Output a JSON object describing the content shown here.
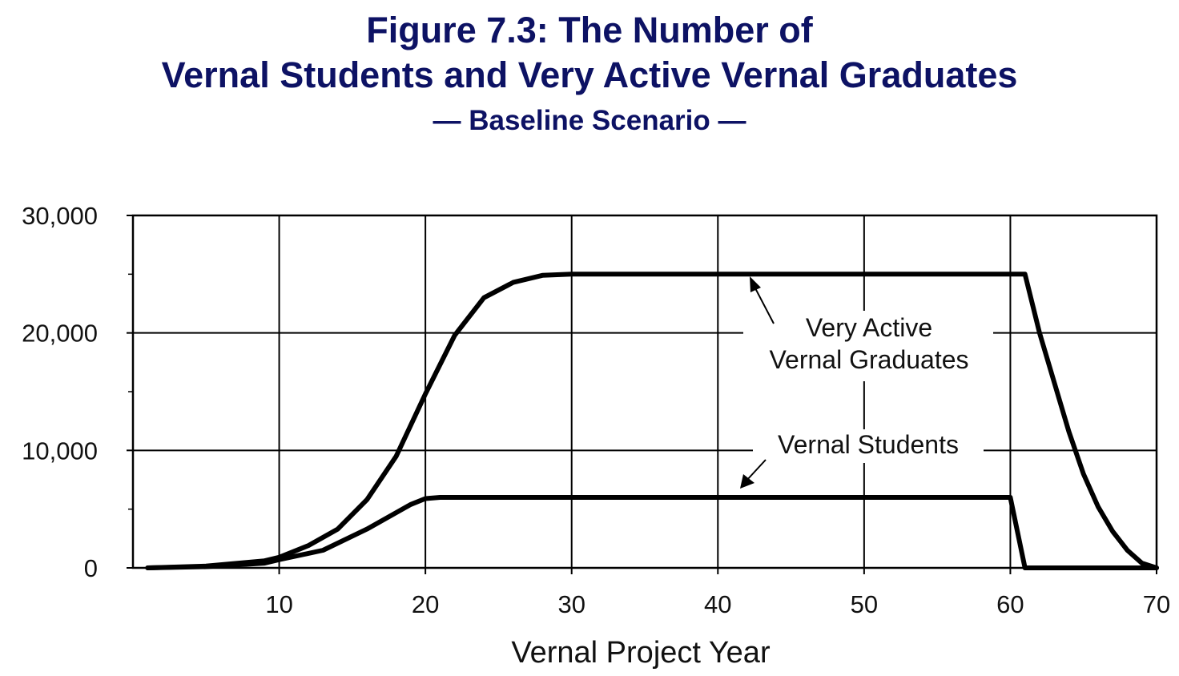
{
  "title": {
    "line1": "Figure 7.3: The Number of",
    "line2": "Vernal Students and Very Active Vernal Graduates",
    "subtitle": "— Baseline Scenario —"
  },
  "chart_data": {
    "type": "line",
    "xlabel": "Vernal Project Year",
    "ylabel": "",
    "xlim": [
      0,
      70
    ],
    "ylim": [
      0,
      30000
    ],
    "xticks": [
      10,
      20,
      30,
      40,
      50,
      60,
      70
    ],
    "yticks": [
      0,
      10000,
      20000,
      30000
    ],
    "ytick_labels": [
      "0",
      "10,000",
      "20,000",
      "30,000"
    ],
    "grid": true,
    "series": [
      {
        "name": "Very Active Vernal Graduates",
        "points": [
          [
            1,
            0
          ],
          [
            5,
            150
          ],
          [
            9,
            600
          ],
          [
            10,
            900
          ],
          [
            12,
            1900
          ],
          [
            14,
            3300
          ],
          [
            16,
            5800
          ],
          [
            18,
            9500
          ],
          [
            20,
            14800
          ],
          [
            22,
            19800
          ],
          [
            24,
            23000
          ],
          [
            26,
            24300
          ],
          [
            28,
            24900
          ],
          [
            30,
            25000
          ],
          [
            61,
            25000
          ],
          [
            62,
            20000
          ],
          [
            63,
            15800
          ],
          [
            64,
            11600
          ],
          [
            65,
            8000
          ],
          [
            66,
            5200
          ],
          [
            67,
            3100
          ],
          [
            68,
            1500
          ],
          [
            69,
            400
          ],
          [
            70,
            0
          ]
        ]
      },
      {
        "name": "Vernal Students",
        "points": [
          [
            1,
            0
          ],
          [
            5,
            100
          ],
          [
            9,
            400
          ],
          [
            10,
            700
          ],
          [
            13,
            1500
          ],
          [
            16,
            3300
          ],
          [
            19,
            5400
          ],
          [
            20,
            5900
          ],
          [
            21,
            6000
          ],
          [
            60,
            6000
          ],
          [
            61,
            0
          ],
          [
            69,
            0
          ],
          [
            70,
            0
          ]
        ]
      }
    ],
    "annotations": [
      {
        "text_line1": "Very Active",
        "text_line2": "Vernal Graduates",
        "series": "Very Active Vernal Graduates"
      },
      {
        "text_line1": "Vernal Students",
        "series": "Vernal Students"
      }
    ]
  }
}
